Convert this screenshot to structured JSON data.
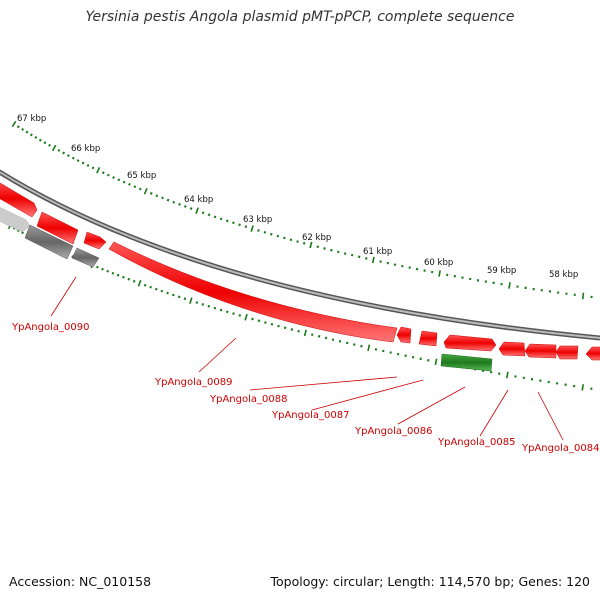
{
  "title": "Yersinia pestis Angola plasmid pMT-pPCP, complete sequence",
  "footer": {
    "accession": "Accession: NC_010158",
    "topology": "Topology: circular; Length: 114,570 bp; Genes: 120"
  },
  "kbp_labels": [
    "67 kbp",
    "66 kbp",
    "65 kbp",
    "64 kbp",
    "63 kbp",
    "62 kbp",
    "61 kbp",
    "60 kbp",
    "59 kbp",
    "58 kbp"
  ],
  "gene_labels": [
    "YpAngola_0090",
    "YpAngola_0089",
    "YpAngola_0088",
    "YpAngola_0087",
    "YpAngola_0086",
    "YpAngola_0085",
    "YpAngola_0084"
  ],
  "colors": {
    "forward_gene": "#ff0000",
    "reverse_gene": "#ff0000",
    "rna_gene": "#2a8a2a",
    "pseudo_gene": "#777777",
    "backbone": "#888888",
    "ticks": "#1a7a1a",
    "labels": "#cc0000"
  }
}
